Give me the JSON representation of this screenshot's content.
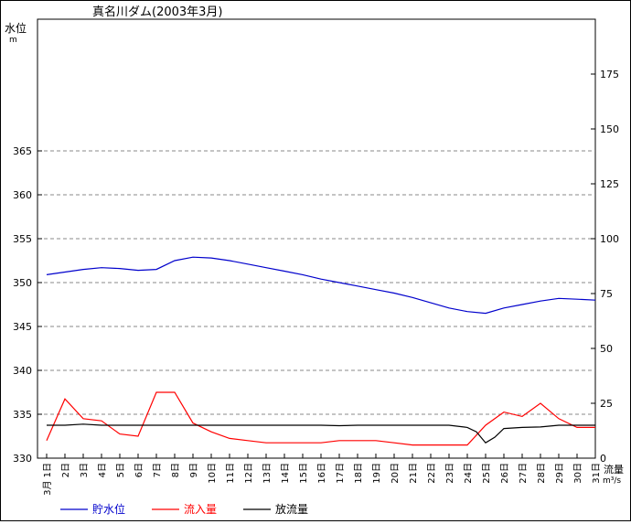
{
  "chart_data": {
    "type": "line",
    "title": "真名川ダム(2003年3月)",
    "left_axis": {
      "label_line1": "水位",
      "label_line2": "m",
      "ylim": [
        330,
        380
      ],
      "ticks": [
        330,
        335,
        340,
        345,
        350,
        355,
        360,
        365
      ]
    },
    "right_axis": {
      "label_line1": "流量",
      "label_line2": "m³/s",
      "ylim": [
        0,
        200
      ],
      "ticks": [
        0,
        25,
        50,
        75,
        100,
        125,
        150,
        175
      ]
    },
    "x_labels": [
      "3月 1日",
      "2日",
      "3日",
      "4日",
      "5日",
      "6日",
      "7日",
      "8日",
      "9日",
      "10日",
      "11日",
      "12日",
      "13日",
      "14日",
      "15日",
      "16日",
      "17日",
      "18日",
      "19日",
      "20日",
      "21日",
      "22日",
      "23日",
      "24日",
      "25日",
      "26日",
      "27日",
      "28日",
      "29日",
      "30日",
      "31日"
    ],
    "grid": "horizontal dashed",
    "series": [
      {
        "name": "貯水位",
        "axis": "left",
        "color": "#0000cc",
        "x": [
          1,
          2,
          3,
          4,
          5,
          6,
          7,
          8,
          9,
          10,
          11,
          12,
          13,
          14,
          15,
          16,
          17,
          18,
          19,
          20,
          21,
          22,
          23,
          24,
          25,
          26,
          27,
          28,
          29,
          30,
          31
        ],
        "values": [
          350.9,
          351.2,
          351.5,
          351.7,
          351.6,
          351.4,
          351.5,
          352.5,
          352.9,
          352.8,
          352.5,
          352.1,
          351.7,
          351.3,
          350.9,
          350.4,
          350.0,
          349.6,
          349.2,
          348.8,
          348.3,
          347.7,
          347.1,
          346.7,
          346.5,
          347.1,
          347.5,
          347.9,
          348.2,
          348.1,
          348.0
        ]
      },
      {
        "name": "流入量",
        "axis": "right",
        "color": "#ff0000",
        "x": [
          1,
          2,
          3,
          4,
          5,
          6,
          7,
          8,
          9,
          10,
          11,
          12,
          13,
          14,
          15,
          16,
          17,
          18,
          19,
          20,
          21,
          22,
          23,
          24,
          25,
          26,
          27,
          28,
          29,
          30,
          31
        ],
        "values": [
          8,
          27,
          18,
          17,
          11,
          10,
          30,
          30,
          16,
          12,
          9,
          8,
          7,
          7,
          7,
          7,
          8,
          8,
          8,
          7,
          6,
          6,
          6,
          6,
          15,
          21,
          19,
          25,
          18,
          14,
          14
        ]
      },
      {
        "name": "放流量",
        "axis": "right",
        "color": "#000000",
        "x": [
          1,
          2,
          3,
          4,
          5,
          6,
          7,
          8,
          9,
          10,
          11,
          12,
          13,
          14,
          15,
          16,
          17,
          18,
          19,
          20,
          21,
          22,
          23,
          24,
          24.5,
          25,
          25.5,
          26,
          27,
          28,
          29,
          30,
          31
        ],
        "values": [
          15,
          15,
          15.5,
          15,
          15,
          15,
          15,
          15,
          15,
          15,
          15,
          15,
          15,
          15,
          15,
          15,
          14.8,
          15,
          15,
          15,
          15,
          15,
          15,
          14,
          12,
          7,
          9.5,
          13.5,
          14,
          14.2,
          15,
          15,
          15
        ]
      }
    ]
  }
}
